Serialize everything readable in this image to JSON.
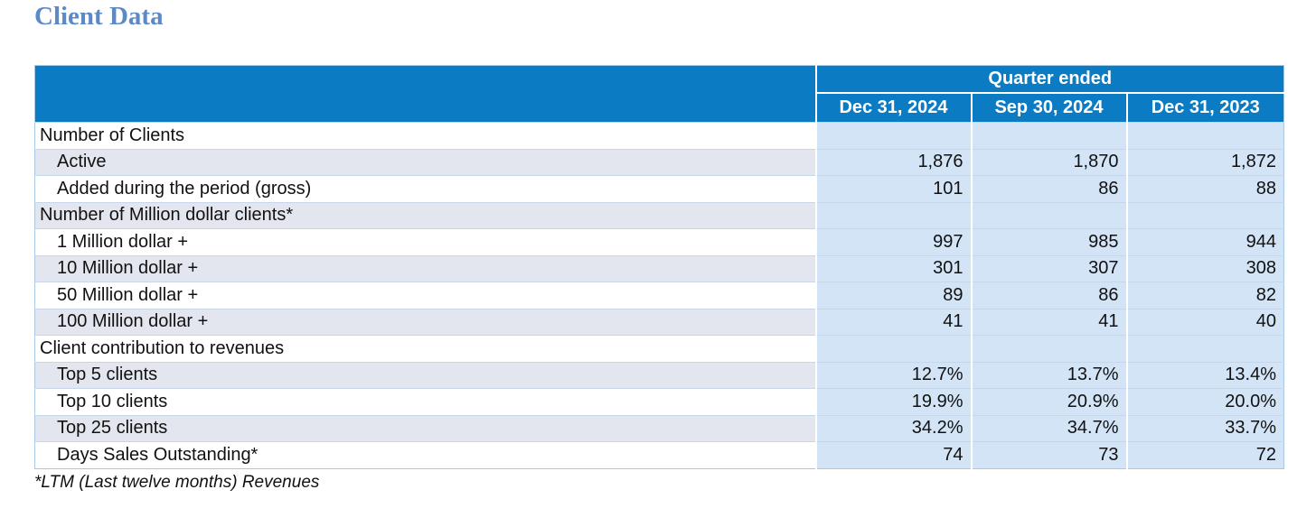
{
  "title": "Client Data",
  "header": {
    "group_label": "Quarter ended",
    "columns": [
      "Dec 31, 2024",
      "Sep 30, 2024",
      "Dec 31, 2023"
    ]
  },
  "rows": [
    {
      "label": "Number of Clients",
      "indent": false,
      "shaded": false,
      "values": [
        "",
        "",
        ""
      ]
    },
    {
      "label": "Active",
      "indent": true,
      "shaded": true,
      "values": [
        "1,876",
        "1,870",
        "1,872"
      ]
    },
    {
      "label": "Added during the period (gross)",
      "indent": true,
      "shaded": false,
      "values": [
        "101",
        "86",
        "88"
      ]
    },
    {
      "label": "Number of Million dollar clients*",
      "indent": false,
      "shaded": true,
      "values": [
        "",
        "",
        ""
      ]
    },
    {
      "label": "1 Million dollar +",
      "indent": true,
      "shaded": false,
      "values": [
        "997",
        "985",
        "944"
      ]
    },
    {
      "label": "10 Million dollar +",
      "indent": true,
      "shaded": true,
      "values": [
        "301",
        "307",
        "308"
      ]
    },
    {
      "label": "50 Million dollar +",
      "indent": true,
      "shaded": false,
      "values": [
        "89",
        "86",
        "82"
      ]
    },
    {
      "label": "100 Million dollar +",
      "indent": true,
      "shaded": true,
      "values": [
        "41",
        "41",
        "40"
      ]
    },
    {
      "label": "Client contribution to revenues",
      "indent": false,
      "shaded": false,
      "values": [
        "",
        "",
        ""
      ]
    },
    {
      "label": "Top 5 clients",
      "indent": true,
      "shaded": true,
      "values": [
        "12.7%",
        "13.7%",
        "13.4%"
      ]
    },
    {
      "label": "Top 10 clients",
      "indent": true,
      "shaded": false,
      "values": [
        "19.9%",
        "20.9%",
        "20.0%"
      ]
    },
    {
      "label": "Top 25 clients",
      "indent": true,
      "shaded": true,
      "values": [
        "34.2%",
        "34.7%",
        "33.7%"
      ]
    },
    {
      "label": "Days Sales Outstanding*",
      "indent": true,
      "shaded": false,
      "values": [
        "74",
        "73",
        "72"
      ]
    }
  ],
  "footnote": "*LTM (Last twelve months) Revenues",
  "colors": {
    "title": "#5b8ac6",
    "header_bg": "#0b7bc4",
    "value_cell_bg": "#d3e4f6",
    "shaded_label_bg": "#e3e6ee"
  }
}
